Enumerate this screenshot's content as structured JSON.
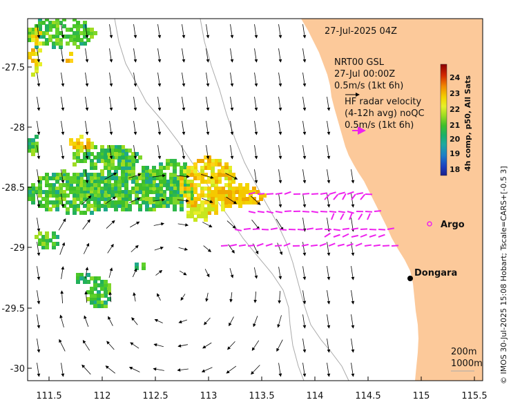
{
  "header": {
    "timestamp": "27-Jul-2025 04Z"
  },
  "model_arrows": {
    "line1": "NRT00 GSL",
    "line2": "27-Jul 00:00Z",
    "scale": "0.5m/s (1kt 6h)"
  },
  "radar_arrows": {
    "line1": "HF radar velocity",
    "line2": "(4-12h avg) noQC",
    "scale": "0.5m/s (1kt 6h)"
  },
  "colorbar": {
    "title": "4h comp, p50, All Sats",
    "labels": [
      "24",
      "23",
      "22",
      "21",
      "20",
      "19",
      "18"
    ],
    "stops": [
      "#8b0000",
      "#d42a00",
      "#f28a00",
      "#f3d400",
      "#e6ef2a",
      "#9fdc22",
      "#3fbf2a",
      "#19b06a",
      "#1fa8a0",
      "#1d7ec8",
      "#1c3fc0",
      "#1a1f8c"
    ]
  },
  "x_axis": {
    "ticks": [
      "111.5",
      "112",
      "112.5",
      "113",
      "113.5",
      "114",
      "114.5",
      "115",
      "115.5"
    ]
  },
  "y_axis": {
    "ticks": [
      "-27.5",
      "-28",
      "-28.5",
      "-29",
      "-29.5",
      "-30"
    ]
  },
  "places": {
    "argo": "Argo",
    "dongara": "Dongara"
  },
  "contours": {
    "label_200": "200m",
    "label_1000": "1000m"
  },
  "credit": "© IMOS 30-Jul-2025 15:08 Hobart; Tscale=CARS+[-0.5 3]",
  "colors": {
    "land": "#fcc99a",
    "radar_arrow": "#ee22ee",
    "contour": "#aaaaaa"
  }
}
